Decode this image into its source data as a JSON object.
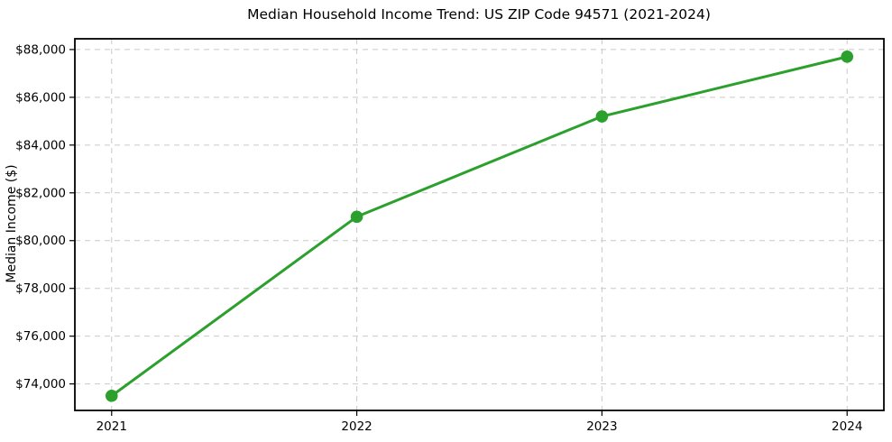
{
  "chart_data": {
    "type": "line",
    "title": "Median Household Income Trend: US ZIP Code 94571 (2021-2024)",
    "xlabel": "",
    "ylabel": "Median Income ($)",
    "x": [
      2021,
      2022,
      2023,
      2024
    ],
    "x_tick_labels": [
      "2021",
      "2022",
      "2023",
      "2024"
    ],
    "values": [
      73500,
      81000,
      85200,
      87700
    ],
    "y_ticks": [
      74000,
      76000,
      78000,
      80000,
      82000,
      84000,
      86000,
      88000
    ],
    "y_tick_labels": [
      "$74,000",
      "$76,000",
      "$78,000",
      "$80,000",
      "$82,000",
      "$84,000",
      "$86,000",
      "$88,000"
    ],
    "xlim": [
      2020.85,
      2024.15
    ],
    "ylim": [
      72890,
      88450
    ],
    "grid": true,
    "legend_position": "none",
    "line_color": "#2ca02c",
    "marker_color": "#2ca02c",
    "grid_color": "#c9c9c9",
    "spine_color": "#000000",
    "text_color": "#000000",
    "background": "#ffffff"
  }
}
